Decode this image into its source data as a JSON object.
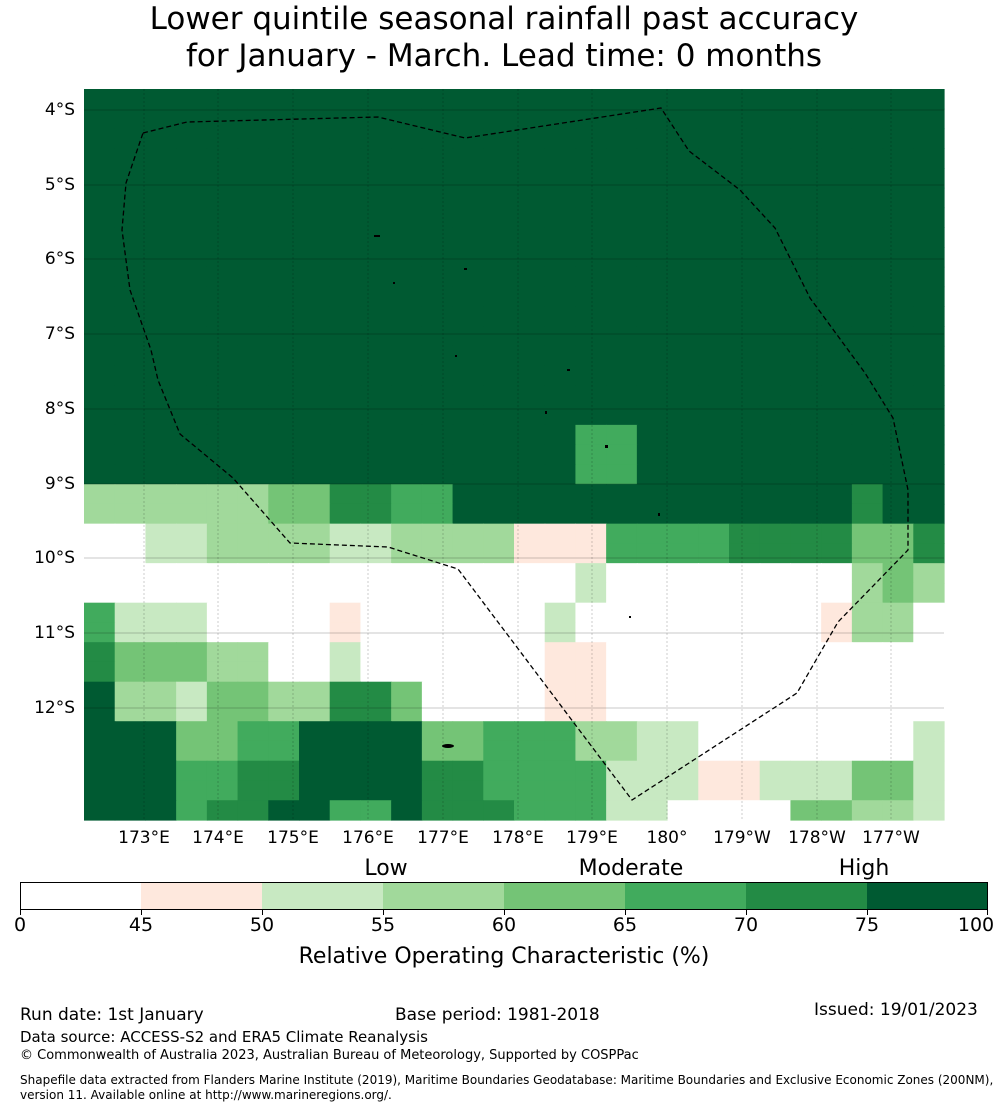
{
  "title": {
    "line1": "Lower quintile seasonal rainfall past accuracy",
    "line2": "for January - March. Lead time: 0 months"
  },
  "map": {
    "lat_labels": [
      "4°S",
      "5°S",
      "6°S",
      "7°S",
      "8°S",
      "9°S",
      "10°S",
      "11°S",
      "12°S"
    ],
    "lon_labels": [
      "173°E",
      "174°E",
      "175°E",
      "176°E",
      "177°E",
      "178°E",
      "179°E",
      "180°",
      "179°W",
      "178°W",
      "177°W"
    ],
    "boundary_style": "dashed black EEZ outline",
    "grid_colors_by_category": {
      "0": "#ffffff",
      "1": "#fee8dd",
      "2": "#c8e9c2",
      "3": "#a1d99b",
      "4": "#74c476",
      "5": "#41ab5d",
      "6": "#238b45",
      "7": "#005a32"
    },
    "grid_rows": [
      "7777777777777777777777777777",
      "7777777777777777777777777777",
      "7777777777777777777777777777",
      "7777777777777777777777777777",
      "7777777777777777777777777777",
      "7777777777777777777777777777",
      "7777777777777777777777777777",
      "7777777777777777777777777777",
      "7777777777777777777777777777",
      "7777777777777777777777777777",
      "7777777777777777777777777777",
      "7777777777777777777777777777",
      "7777777777777777777777777777",
      "7777777777777777777777777777",
      "7777777777777777777777777777",
      "7777777777777777777777777777",
      "7777777777777777777777777777",
      "7777777777777777557777777777",
      "7777777777777777557777777777",
      "7777777777777777557777777777",
      "3333334466557777777777777677",
      "3333334466557777777777777677",
      "0022333322333311155556666446",
      "0022333322333311155556666446",
      "0000000000000000200000000343",
      "0000000000000000200000000343",
      "5222000010000002000000001330",
      "5222000010000002000000001330",
      "6444330020000001100000000000",
      "6444330020000001100000000000",
      "7332443366400001100000000000",
      "7332443366400001100000000000",
      "7774455777744555332200000002",
      "7774455777744555332200000002",
      "7775566777766555522211222442",
      "7775566777766555522211222442",
      "7775667755766655522000044332"
    ]
  },
  "colorbar": {
    "category_labels": [
      "Low",
      "Moderate",
      "High"
    ],
    "tick_labels": [
      "0",
      "45",
      "50",
      "55",
      "60",
      "65",
      "70",
      "75",
      "100"
    ],
    "segment_colors": [
      "#ffffff",
      "#fee8dd",
      "#c8e9c2",
      "#a1d99b",
      "#74c476",
      "#41ab5d",
      "#238b45",
      "#005a32"
    ],
    "label": "Relative Operating Characteristic (%)"
  },
  "footer": {
    "run_date": "Run date: 1st January",
    "base_period": "Base period: 1981-2018",
    "issued": "Issued: 19/01/2023",
    "data_source": "Data source: ACCESS-S2 and ERA5 Climate Reanalysis",
    "copyright": "© Commonwealth of Australia 2023, Australian Bureau of Meteorology, Supported by COSPPac",
    "shapefile_line1": "Shapefile data extracted from Flanders Marine Institute (2019), Maritime Boundaries Geodatabase: Maritime Boundaries and Exclusive Economic Zones (200NM),",
    "shapefile_line2": "version 11. Available online at http://www.marineregions.org/."
  }
}
